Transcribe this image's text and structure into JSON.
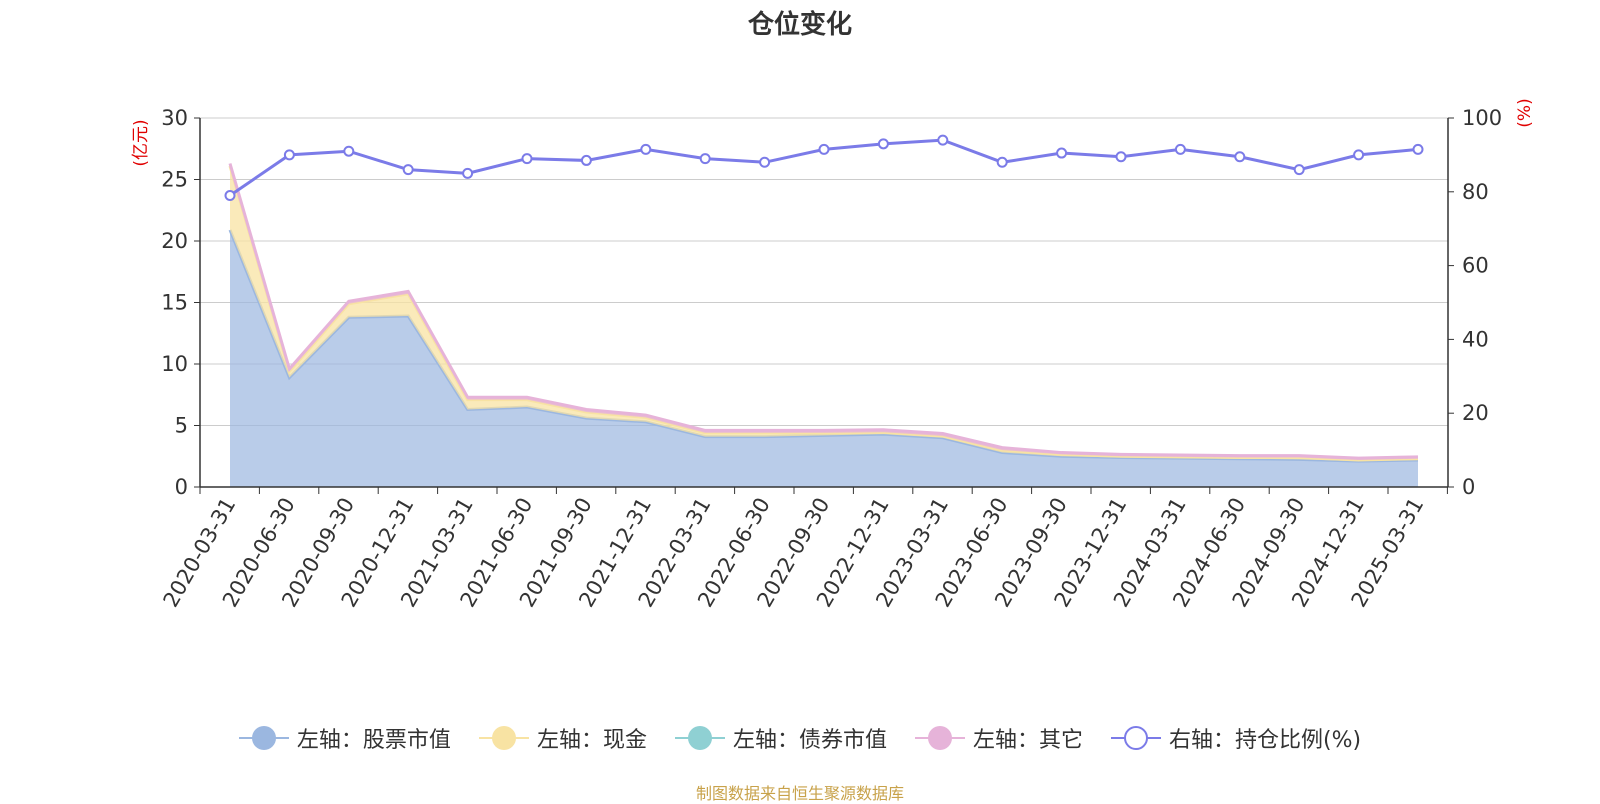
{
  "title": "仓位变化",
  "source_note": "制图数据来自恒生聚源数据库",
  "legend": [
    {
      "label": "左轴：股票市值",
      "color": "#9bb7e0",
      "marker": "filled"
    },
    {
      "label": "左轴：现金",
      "color": "#f8e3a3",
      "marker": "filled"
    },
    {
      "label": "左轴：债券市值",
      "color": "#8fd0d3",
      "marker": "filled"
    },
    {
      "label": "左轴：其它",
      "color": "#e6b3d9",
      "marker": "filled"
    },
    {
      "label": "右轴：持仓比例(%)",
      "color": "#7b7be8",
      "marker": "hollow"
    }
  ],
  "chart_data": {
    "type": "area",
    "left_axis": {
      "label": "(亿元)",
      "min": 0,
      "max": 30,
      "ticks": [
        0,
        5,
        10,
        15,
        20,
        25,
        30
      ]
    },
    "right_axis": {
      "label": "(%)",
      "min": 0,
      "max": 100,
      "ticks": [
        0,
        20,
        40,
        60,
        80,
        100
      ]
    },
    "grid": true,
    "legend_position": "bottom",
    "categories": [
      "2020-03-31",
      "2020-06-30",
      "2020-09-30",
      "2020-12-31",
      "2021-03-31",
      "2021-06-30",
      "2021-09-30",
      "2021-12-31",
      "2022-03-31",
      "2022-06-30",
      "2022-09-30",
      "2022-12-31",
      "2023-03-31",
      "2023-06-30",
      "2023-09-30",
      "2023-12-31",
      "2024-03-31",
      "2024-06-30",
      "2024-09-30",
      "2024-12-31",
      "2025-03-31"
    ],
    "series": [
      {
        "name": "左轴：股票市值",
        "axis": "left",
        "stacked": true,
        "color": "#9bb7e0",
        "values": [
          20.9,
          8.9,
          13.8,
          13.9,
          6.3,
          6.5,
          5.6,
          5.3,
          4.1,
          4.1,
          4.2,
          4.3,
          4.0,
          2.8,
          2.5,
          2.4,
          2.35,
          2.3,
          2.25,
          2.1,
          2.2
        ]
      },
      {
        "name": "左轴：现金",
        "axis": "left",
        "stacked": true,
        "color": "#f8e3a3",
        "values": [
          5.2,
          0.5,
          1.1,
          1.8,
          0.8,
          0.6,
          0.5,
          0.35,
          0.3,
          0.3,
          0.2,
          0.15,
          0.15,
          0.2,
          0.15,
          0.1,
          0.1,
          0.1,
          0.15,
          0.1,
          0.1
        ]
      },
      {
        "name": "左轴：债券市值",
        "axis": "left",
        "stacked": true,
        "color": "#8fd0d3",
        "values": [
          0,
          0,
          0,
          0,
          0,
          0,
          0,
          0,
          0,
          0,
          0,
          0,
          0,
          0,
          0,
          0,
          0,
          0,
          0,
          0,
          0
        ]
      },
      {
        "name": "左轴：其它",
        "axis": "left",
        "stacked": true,
        "color": "#e6b3d9",
        "values": [
          0.2,
          0.2,
          0.2,
          0.2,
          0.2,
          0.2,
          0.2,
          0.2,
          0.2,
          0.2,
          0.2,
          0.2,
          0.2,
          0.2,
          0.15,
          0.15,
          0.15,
          0.15,
          0.15,
          0.15,
          0.15
        ]
      },
      {
        "name": "右轴：持仓比例(%)",
        "axis": "right",
        "type": "line",
        "color": "#7b7be8",
        "values": [
          79,
          90,
          91,
          86,
          85,
          89,
          88.5,
          91.5,
          89,
          88,
          91.5,
          93,
          94,
          88,
          90.5,
          89.5,
          91.5,
          89.5,
          86,
          90,
          91.5
        ]
      }
    ]
  }
}
